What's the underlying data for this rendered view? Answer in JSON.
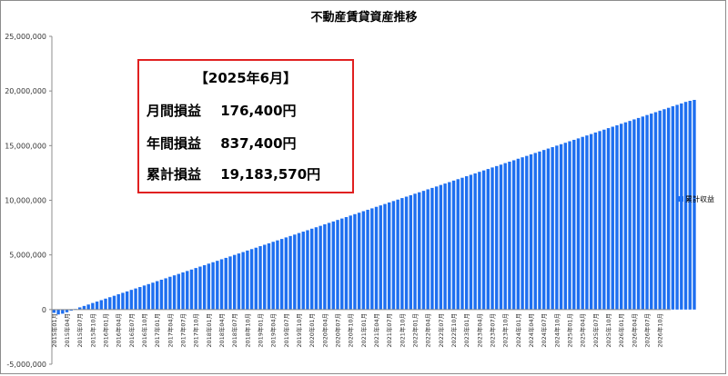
{
  "chart_data": {
    "type": "bar",
    "title": "不動産賃貸資産推移",
    "ylim": [
      -5000000,
      25000000
    ],
    "yticks": [
      "25,000,000",
      "20,000,000",
      "15,000,000",
      "10,000,000",
      "5,000,000",
      "0",
      "-5,000,000"
    ],
    "ytick_values": [
      25000000,
      20000000,
      15000000,
      10000000,
      5000000,
      0,
      -5000000
    ],
    "x_start": "2015年01月",
    "x_end": "2026年12月",
    "xtick_labels": [
      "2015年01月",
      "2015年04月",
      "2015年07月",
      "2015年10月",
      "2016年01月",
      "2016年04月",
      "2016年07月",
      "2016年10月",
      "2017年01月",
      "2017年04月",
      "2017年07月",
      "2017年10月",
      "2018年01月",
      "2018年04月",
      "2018年07月",
      "2018年10月",
      "2019年01月",
      "2019年04月",
      "2019年07月",
      "2019年10月",
      "2020年01月",
      "2020年04月",
      "2020年07月",
      "2020年10月",
      "2021年01月",
      "2021年04月",
      "2021年07月",
      "2021年10月",
      "2022年01月",
      "2022年04月",
      "2022年07月",
      "2022年10月",
      "2023年01月",
      "2023年04月",
      "2023年07月",
      "2023年10月",
      "2024年01月",
      "2024年04月",
      "2024年07月",
      "2024年10月",
      "2025年01月",
      "2025年04月",
      "2025年07月",
      "2025年10月",
      "2026年01月",
      "2026年04月",
      "2026年07月",
      "2026年10月"
    ],
    "series": [
      {
        "name": "累計収益",
        "color": "#1e6ff0",
        "values": [
          -300000,
          -450000,
          -380000,
          -250000,
          -100000,
          50000,
          200000,
          330000,
          460000,
          600000,
          730000,
          860000,
          1000000,
          1130000,
          1260000,
          1400000,
          1530000,
          1660000,
          1800000,
          1930000,
          2060000,
          2200000,
          2330000,
          2460000,
          2600000,
          2730000,
          2860000,
          3000000,
          3130000,
          3260000,
          3400000,
          3530000,
          3660000,
          3800000,
          3930000,
          4060000,
          4200000,
          4330000,
          4460000,
          4600000,
          4730000,
          4860000,
          5000000,
          5130000,
          5260000,
          5400000,
          5530000,
          5660000,
          5800000,
          5930000,
          6060000,
          6200000,
          6330000,
          6460000,
          6600000,
          6730000,
          6860000,
          7000000,
          7130000,
          7260000,
          7400000,
          7530000,
          7660000,
          7800000,
          7930000,
          8060000,
          8200000,
          8330000,
          8460000,
          8600000,
          8730000,
          8860000,
          9000000,
          9130000,
          9260000,
          9400000,
          9530000,
          9660000,
          9800000,
          9930000,
          10060000,
          10200000,
          10330000,
          10460000,
          10600000,
          10730000,
          10860000,
          11000000,
          11130000,
          11260000,
          11400000,
          11530000,
          11660000,
          11800000,
          11930000,
          12060000,
          12200000,
          12330000,
          12460000,
          12600000,
          12730000,
          12860000,
          13000000,
          13130000,
          13260000,
          13400000,
          13530000,
          13660000,
          13800000,
          13930000,
          14060000,
          14200000,
          14330000,
          14460000,
          14600000,
          14730000,
          14860000,
          15000000,
          15130000,
          15260000,
          15400000,
          15530000,
          15660000,
          15800000,
          15930000,
          16060000,
          16200000,
          16330000,
          16460000,
          16600000,
          16730000,
          16860000,
          17000000,
          17130000,
          17260000,
          17400000,
          17530000,
          17660000,
          17800000,
          17930000,
          18060000,
          18200000,
          18330000,
          18460000,
          18600000,
          18730000,
          18860000,
          19000000,
          19100000,
          19183570
        ]
      }
    ],
    "legend_position": "right",
    "grid": false
  },
  "info_box": {
    "heading": "【2025年6月】",
    "rows": [
      {
        "label": "月間損益",
        "value": "176,400円"
      },
      {
        "label": "年間損益",
        "value": "837,400円"
      },
      {
        "label": "累計損益",
        "value": "19,183,570円"
      }
    ],
    "border_color": "#e02020"
  }
}
